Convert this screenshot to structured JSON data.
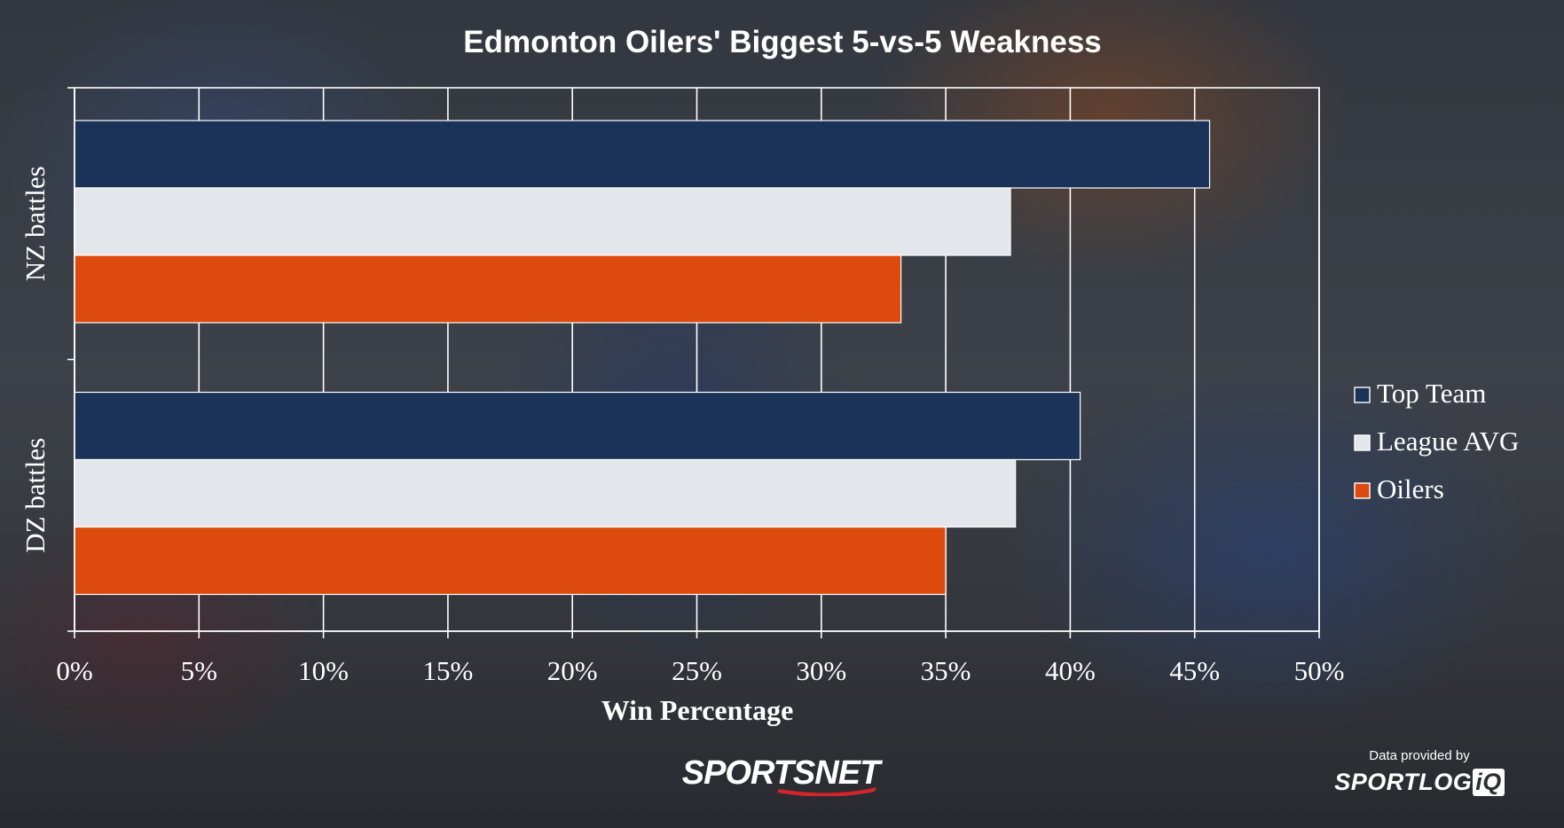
{
  "chart_data": {
    "type": "bar",
    "orientation": "horizontal",
    "title": "Edmonton Oilers' Biggest 5-vs-5 Weakness",
    "categories": [
      "NZ battles",
      "DZ battles"
    ],
    "series": [
      {
        "name": "Top Team",
        "color": "#1b3358",
        "values": [
          45.6,
          40.4
        ]
      },
      {
        "name": "League AVG",
        "color": "#e3e6ea",
        "values": [
          37.6,
          37.8
        ]
      },
      {
        "name": "Oilers",
        "color": "#dd4a0e",
        "values": [
          33.2,
          35.0
        ]
      }
    ],
    "xlabel": "Win Percentage",
    "ylabel": "",
    "xlim": [
      0,
      50
    ],
    "xticks": [
      0,
      5,
      10,
      15,
      20,
      25,
      30,
      35,
      40,
      45,
      50
    ],
    "tick_format": "{v}%",
    "grid": true,
    "legend": "right"
  },
  "branding": {
    "broadcaster_logo": "SPORTSNET",
    "credit_text": "Data provided by",
    "data_logo_main": "SPORTLOG",
    "data_logo_suffix": "iQ"
  }
}
